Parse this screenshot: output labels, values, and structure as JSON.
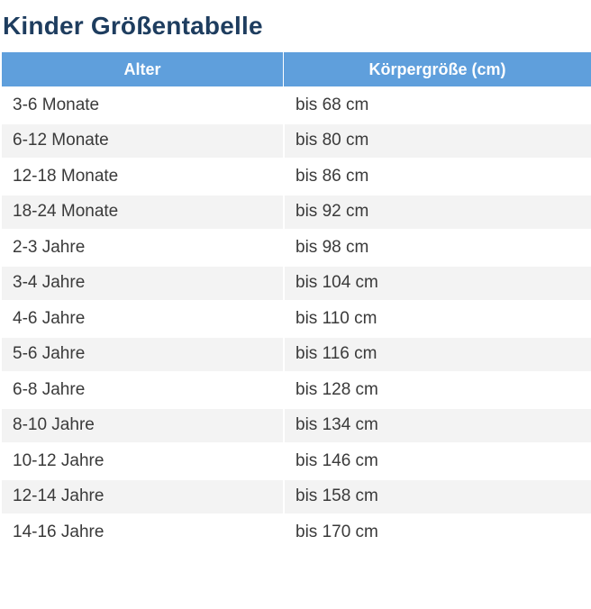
{
  "title": "Kinder Größentabelle",
  "table": {
    "headers": [
      "Alter",
      "Körpergröße (cm)"
    ],
    "rows": [
      [
        "3-6 Monate",
        "bis 68 cm"
      ],
      [
        "6-12 Monate",
        "bis 80 cm"
      ],
      [
        "12-18 Monate",
        "bis 86 cm"
      ],
      [
        "18-24 Monate",
        "bis 92 cm"
      ],
      [
        "2-3 Jahre",
        "bis 98 cm"
      ],
      [
        "3-4 Jahre",
        "bis 104 cm"
      ],
      [
        "4-6 Jahre",
        "bis 110 cm"
      ],
      [
        "5-6 Jahre",
        "bis 116 cm"
      ],
      [
        "6-8 Jahre",
        "bis 128 cm"
      ],
      [
        "8-10 Jahre",
        "bis 134 cm"
      ],
      [
        "10-12 Jahre",
        "bis 146 cm"
      ],
      [
        "12-14 Jahre",
        "bis 158 cm"
      ],
      [
        "14-16 Jahre",
        "bis 170 cm"
      ]
    ]
  },
  "colors": {
    "title": "#1e3d5f",
    "header_bg": "#5f9fdc",
    "header_text": "#ffffff",
    "row_alt_bg": "#f3f3f3",
    "text": "#3a3a3a"
  }
}
